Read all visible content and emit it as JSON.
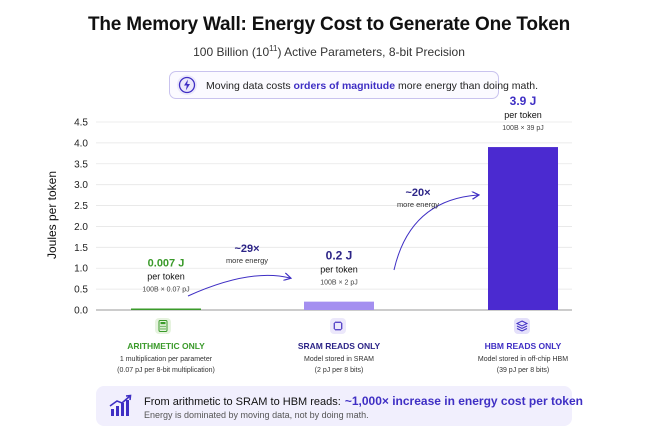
{
  "title": "The Memory Wall: Energy Cost to Generate One Token",
  "subtitle": {
    "prefix": "100 Billion (10",
    "exponent": "11",
    "suffix": ") Active Parameters, 8-bit Precision"
  },
  "callout": {
    "icon": "lightning-bolt-icon",
    "text_before": "Moving data costs ",
    "text_highlight": "orders of magnitude",
    "text_after": " more energy than doing math."
  },
  "chart_data": {
    "type": "bar",
    "ylabel": "Joules per token",
    "ylim": [
      0,
      4.5
    ],
    "yticks": [
      "0.0",
      "0.5",
      "1.0",
      "1.5",
      "2.0",
      "2.5",
      "3.0",
      "3.5",
      "4.0",
      "4.5"
    ],
    "categories": [
      "ARITHMETIC ONLY",
      "SRAM READS ONLY",
      "HBM READS ONLY"
    ],
    "values": [
      0.007,
      0.2,
      3.9
    ],
    "bars": [
      {
        "value_label": "0.007 J",
        "unit_label": "per token",
        "formula": "100B × 0.07 pJ",
        "category_label": "ARITHMETIC ONLY",
        "desc1": "1 multiplication per parameter",
        "desc2": "(0.07 pJ per 8-bit multiplication)",
        "icon": "calculator-icon",
        "color": "#3a9a2a",
        "label_color": "#3a9a2a"
      },
      {
        "value_label": "0.2 J",
        "unit_label": "per token",
        "formula": "100B × 2 pJ",
        "category_label": "SRAM READS ONLY",
        "desc1": "Model stored in SRAM",
        "desc2": "(2 pJ per 8 bits)",
        "icon": "chip-icon",
        "color": "#a48ff0",
        "label_color": "#2c2487"
      },
      {
        "value_label": "3.9 J",
        "unit_label": "per token",
        "formula": "100B × 39 pJ",
        "category_label": "HBM READS ONLY",
        "desc1": "Model stored in off-chip HBM",
        "desc2": "(39 pJ per 8 bits)",
        "icon": "memory-stack-icon",
        "color": "#4b2ad0",
        "label_color": "#3f2fc4"
      }
    ],
    "annotations": [
      {
        "text": "~29×",
        "subtext": "more energy"
      },
      {
        "text": "~20×",
        "subtext": "more energy"
      }
    ],
    "grid": true
  },
  "footer": {
    "icon": "trend-up-chart-icon",
    "main_before": "From arithmetic to SRAM to HBM reads:",
    "main_highlight": "~1,000× increase in energy cost per token",
    "sub": "Energy is dominated by moving data, not by doing math."
  },
  "colors": {
    "accent": "#3f2fc4",
    "green": "#3a9a2a",
    "sram": "#a48ff0",
    "hbm": "#4b2ad0"
  }
}
